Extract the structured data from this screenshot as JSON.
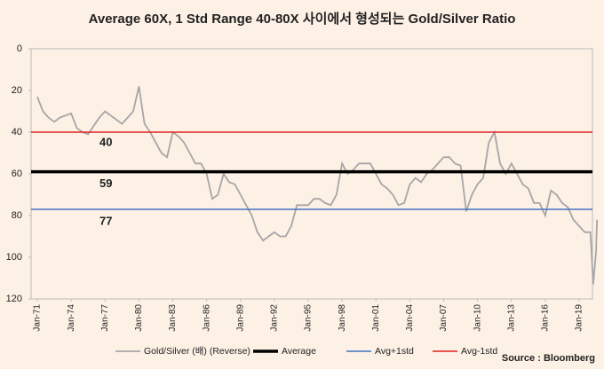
{
  "chart_data": {
    "type": "line",
    "title": "Average 60X, 1 Std Range 40-80X 사이에서 형성되는 Gold/Silver Ratio",
    "x": [
      "Jan-71",
      "Jul-71",
      "Jan-72",
      "Jul-72",
      "Jan-73",
      "Jul-73",
      "Jan-74",
      "Jul-74",
      "Jan-75",
      "Jul-75",
      "Jan-76",
      "Jul-76",
      "Jan-77",
      "Jul-77",
      "Jan-78",
      "Jul-78",
      "Jan-79",
      "Jul-79",
      "Jan-80",
      "Jul-80",
      "Jan-81",
      "Jul-81",
      "Jan-82",
      "Jul-82",
      "Jan-83",
      "Jul-83",
      "Jan-84",
      "Jul-84",
      "Jan-85",
      "Jul-85",
      "Jan-86",
      "Jul-86",
      "Jan-87",
      "Jul-87",
      "Jan-88",
      "Jul-88",
      "Jan-89",
      "Jul-89",
      "Jan-90",
      "Jul-90",
      "Jan-91",
      "Jul-91",
      "Jan-92",
      "Jul-92",
      "Jan-93",
      "Jul-93",
      "Jan-94",
      "Jul-94",
      "Jan-95",
      "Jul-95",
      "Jan-96",
      "Jul-96",
      "Jan-97",
      "Jul-97",
      "Jan-98",
      "Jul-98",
      "Jan-99",
      "Jul-99",
      "Jan-00",
      "Jul-00",
      "Jan-01",
      "Jul-01",
      "Jan-02",
      "Jul-02",
      "Jan-03",
      "Jul-03",
      "Jan-04",
      "Jul-04",
      "Jan-05",
      "Jul-05",
      "Jan-06",
      "Jul-06",
      "Jan-07",
      "Jul-07",
      "Jan-08",
      "Jul-08",
      "Jan-09",
      "Jul-09",
      "Jan-10",
      "Jul-10",
      "Jan-11",
      "Jul-11",
      "Jan-12",
      "Jul-12",
      "Jan-13",
      "Jul-13",
      "Jan-14",
      "Jul-14",
      "Jan-15",
      "Jul-15",
      "Jan-16",
      "Jul-16",
      "Jan-17",
      "Jul-17",
      "Jan-18",
      "Jul-18",
      "Jan-19",
      "Jul-19",
      "Jan-20",
      "Apr-20",
      "Jul-20",
      "Aug-20"
    ],
    "series": [
      {
        "name": "Gold/Silver (배) (Reverse)",
        "color": "#a6a6a6",
        "values": [
          23,
          30,
          33,
          35,
          33,
          32,
          31,
          38,
          40,
          41,
          37,
          33,
          30,
          32,
          34,
          36,
          33,
          30,
          18,
          36,
          40,
          45,
          50,
          52,
          40,
          42,
          45,
          50,
          55,
          55,
          60,
          72,
          70,
          60,
          64,
          65,
          70,
          75,
          80,
          88,
          92,
          90,
          88,
          90,
          90,
          85,
          75,
          75,
          75,
          72,
          72,
          74,
          75,
          70,
          55,
          60,
          58,
          55,
          55,
          55,
          60,
          65,
          67,
          70,
          75,
          74,
          65,
          62,
          64,
          60,
          58,
          55,
          52,
          52,
          55,
          56,
          78,
          70,
          65,
          62,
          45,
          40,
          55,
          60,
          55,
          60,
          65,
          67,
          74,
          74,
          80,
          68,
          70,
          74,
          76,
          82,
          85,
          88,
          88,
          113,
          97,
          82
        ]
      }
    ],
    "reference_lines": [
      {
        "name": "Average",
        "value": 59,
        "color": "#000000"
      },
      {
        "name": "Avg+1std",
        "value": 77,
        "color": "#4472c4"
      },
      {
        "name": "Avg-1std",
        "value": 40,
        "color": "#e02020"
      }
    ],
    "ylim": [
      0,
      120
    ],
    "yticks": [
      0,
      20,
      40,
      60,
      80,
      100,
      120
    ],
    "y_reversed": true,
    "xticks": [
      "Jan-71",
      "Jan-74",
      "Jan-77",
      "Jan-80",
      "Jan-83",
      "Jan-86",
      "Jan-89",
      "Jan-92",
      "Jan-95",
      "Jan-98",
      "Jan-01",
      "Jan-04",
      "Jan-07",
      "Jan-10",
      "Jan-13",
      "Jan-16",
      "Jan-19"
    ],
    "source": "Source : Bloomberg"
  }
}
